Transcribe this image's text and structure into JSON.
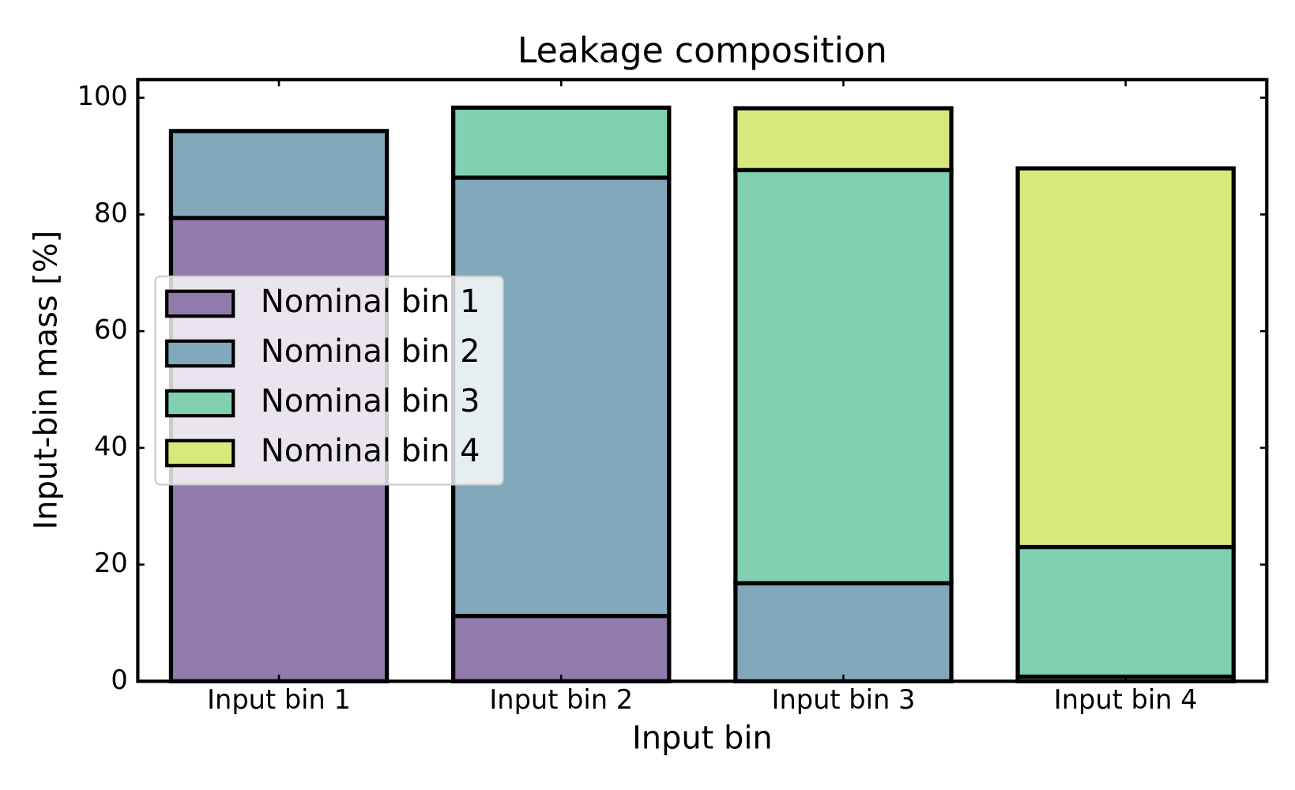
{
  "chart_data": {
    "type": "stacked_bar",
    "title": "Leakage composition",
    "x_label": "Input bin",
    "y_label": "Input-bin mass [%]",
    "categories": [
      "Input bin 1",
      "Input bin 2",
      "Input bin 3",
      "Input bin 4"
    ],
    "series": [
      {
        "name": "Nominal bin 1",
        "color": "#917bac",
        "values": [
          79.4,
          11.2,
          0,
          0
        ]
      },
      {
        "name": "Nominal bin 2",
        "color": "#82a9bb",
        "values": [
          14.9,
          75.1,
          16.8,
          0.8
        ]
      },
      {
        "name": "Nominal bin 3",
        "color": "#80d0b1",
        "values": [
          0,
          12.0,
          70.8,
          22.2
        ]
      },
      {
        "name": "Nominal bin 4",
        "color": "#d8e97c",
        "values": [
          0,
          0,
          10.6,
          64.9
        ]
      }
    ],
    "ylim": [
      0,
      103.1
    ],
    "yticks": [
      0,
      20,
      40,
      60,
      80,
      100
    ],
    "legend": "center left"
  }
}
